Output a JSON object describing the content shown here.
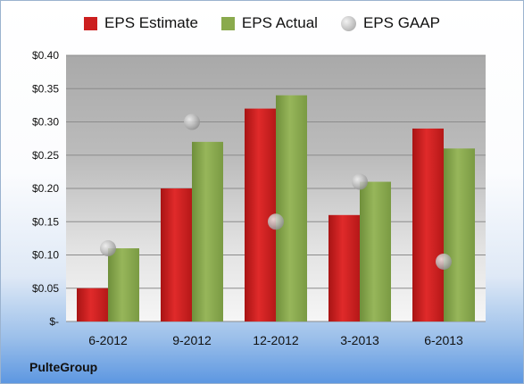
{
  "chart_data": {
    "type": "bar",
    "categories": [
      "6-2012",
      "9-2012",
      "12-2012",
      "3-2013",
      "6-2013"
    ],
    "series": [
      {
        "name": "EPS Estimate",
        "kind": "bar",
        "color": "#cc1f1f",
        "values": [
          0.05,
          0.2,
          0.32,
          0.16,
          0.29
        ]
      },
      {
        "name": "EPS Actual",
        "kind": "bar",
        "color": "#8aaa4d",
        "values": [
          0.11,
          0.27,
          0.34,
          0.21,
          0.26
        ]
      },
      {
        "name": "EPS GAAP",
        "kind": "marker",
        "color": "#b5b5b5",
        "values": [
          0.11,
          0.3,
          0.15,
          0.21,
          0.09
        ]
      }
    ],
    "y_ticks": [
      "$-",
      "$0.05",
      "$0.10",
      "$0.15",
      "$0.20",
      "$0.25",
      "$0.30",
      "$0.35",
      "$0.40"
    ],
    "ylim": [
      0,
      0.4
    ],
    "grid": true,
    "legend_position": "top"
  },
  "company_label": "PulteGroup"
}
